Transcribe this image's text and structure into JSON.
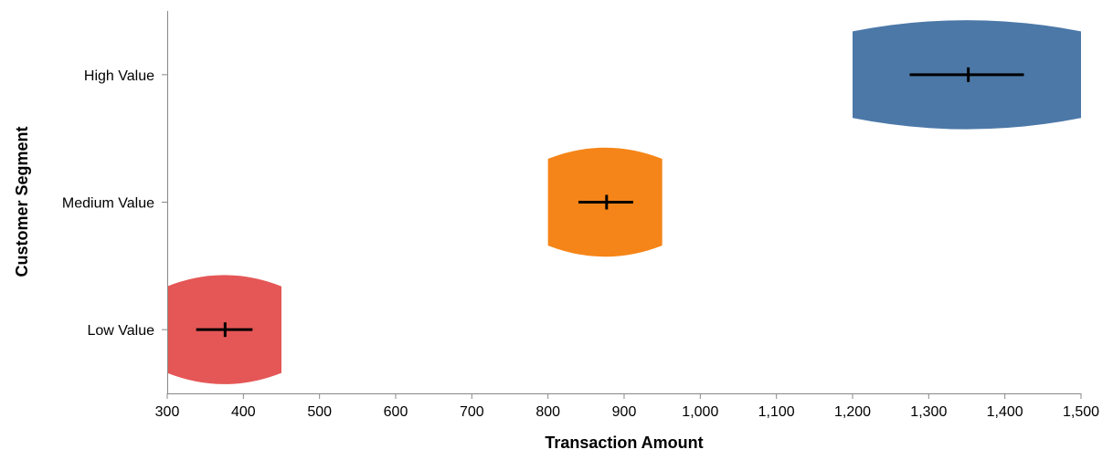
{
  "chart_data": {
    "type": "violin",
    "xlabel": "Transaction Amount",
    "ylabel": "Customer Segment",
    "xlim": [
      300,
      1500
    ],
    "xticks": [
      300,
      400,
      500,
      600,
      700,
      800,
      900,
      1000,
      1100,
      1200,
      1300,
      1400,
      1500
    ],
    "xtick_labels": [
      "300",
      "400",
      "500",
      "600",
      "700",
      "800",
      "900",
      "1,000",
      "1,100",
      "1,200",
      "1,300",
      "1,400",
      "1,500"
    ],
    "categories": [
      "High Value",
      "Medium Value",
      "Low Value"
    ],
    "series": [
      {
        "category": "High Value",
        "color": "#4c78a8",
        "min": 1200,
        "max": 1500,
        "mean": 1352,
        "ci_low": 1275,
        "ci_high": 1425
      },
      {
        "category": "Medium Value",
        "color": "#f58518",
        "min": 800,
        "max": 950,
        "mean": 877,
        "ci_low": 840,
        "ci_high": 912
      },
      {
        "category": "Low Value",
        "color": "#e45756",
        "min": 300,
        "max": 450,
        "mean": 376,
        "ci_low": 338,
        "ci_high": 412
      }
    ],
    "grid": false,
    "legend": "none"
  }
}
